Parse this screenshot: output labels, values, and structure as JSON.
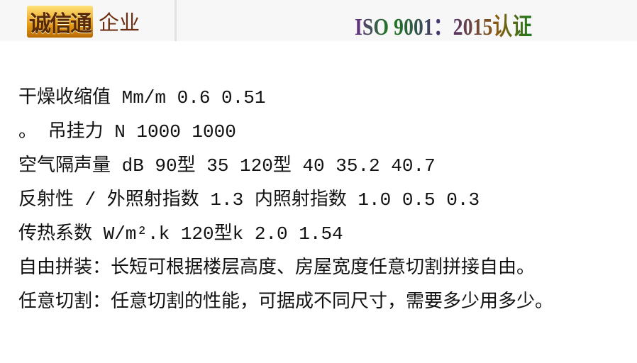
{
  "header": {
    "logo_mark": "诚信通",
    "logo_text": "企业",
    "certification": "ISO 9001：2015认证"
  },
  "content": {
    "lines": [
      "干燥收缩值 Mm/m 0.6 0.51",
      "。 吊挂力 N 1000 1000",
      "空气隔声量 dB 90型 35 120型 40 35.2 40.7",
      "反射性 / 外照射指数 1.3 内照射指数 1.0 0.5 0.3",
      "传热系数 W/m².k 120型k 2.0 1.54",
      "自由拼装：长短可根据楼层高度、房屋宽度任意切割拼接自由。",
      "任意切割：任意切割的性能，可据成不同尺寸，需要多少用多少。"
    ]
  }
}
